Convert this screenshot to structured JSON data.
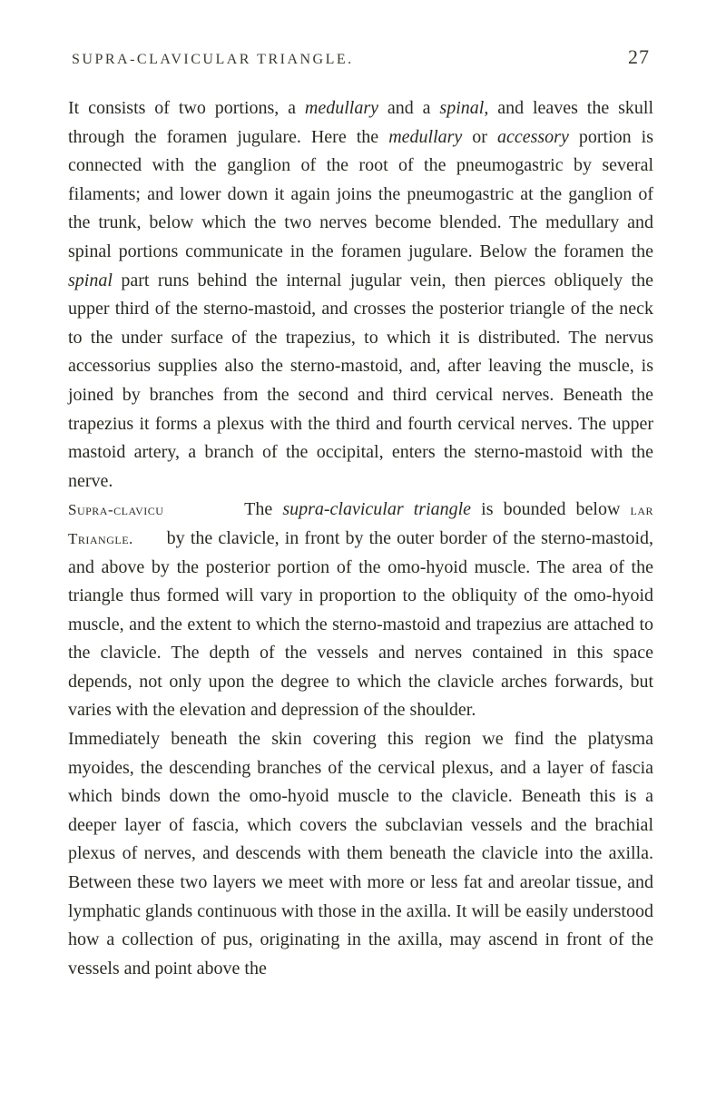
{
  "header": {
    "title": "SUPRA-CLAVICULAR TRIANGLE.",
    "page_number": "27"
  },
  "paragraphs": {
    "p1": "It consists of two portions, a ",
    "p1_i1": "medullary",
    "p1_a": " and a ",
    "p1_i2": "spinal",
    "p1_b": ", and leaves the skull through the foramen jugulare. Here the ",
    "p1_i3": "medullary",
    "p1_c": " or ",
    "p1_i4": "accessory",
    "p1_d": " portion is connected with the ganglion of the root of the pneumogastric by several filaments; and lower down it again joins the pneumogastric at the ganglion of the trunk, below which the two nerves become blended. The medullary and spinal portions communicate in the foramen jugulare. Below the foramen the ",
    "p1_i5": "spinal",
    "p1_e": " part runs behind the internal jugular vein, then pierces obliquely the upper third of the sterno-mastoid, and crosses the posterior triangle of the neck to the under surface of the trapezius, to which it is distributed. The nervus accessorius supplies also the sterno-mastoid, and, after leaving the muscle, is joined by branches from the second and third cervical nerves. Beneath the trapezius it forms a plexus with the third and fourth cervical nerves. The upper mastoid artery, a branch of the occi­pital, enters the sterno-mastoid with the nerve.",
    "p2_label1": "Supra-clavicu­",
    "p2_a": "The ",
    "p2_i1": "supra-clavicular triangle",
    "p2_b": " is bounded below ",
    "p2_label2": "lar Triangle.",
    "p2_c": "by the clavicle, in front by the outer border of the sterno-mastoid, and above by the posterior portion of the omo-hyoid muscle. The area of the triangle thus formed will vary in proportion to the obliquity of the omo-hyoid muscle, and the extent to which the sterno-mastoid and trapezius are attached to the clavicle. The depth of the vessels and nerves contained in this space depends, not only upon the degree to which the clavicle arches forwards, but varies with the elevation and depression of the shoulder.",
    "p3": "Immediately beneath the skin covering this region we find the platysma myoides, the descending branches of the cervical plexus, and a layer of fascia which binds down the omo-hyoid muscle to the clavicle. Beneath this is a deeper layer of fascia, which covers the subclavian vessels and the brachial plexus of nerves, and descends with them beneath the clavicle into the axilla. Between these two layers we meet with more or less fat and areolar tissue, and lymphatic glands continuous with those in the axilla. It will be easily understood how a collection of pus, originating in the axilla, may ascend in front of the vessels and point above the"
  },
  "colors": {
    "text": "#2a2a22",
    "background": "#ffffff"
  },
  "typography": {
    "body_fontsize": 20,
    "header_fontsize": 16,
    "pagenum_fontsize": 22,
    "line_height": 1.58,
    "font_family": "Georgia, Times New Roman, serif"
  }
}
